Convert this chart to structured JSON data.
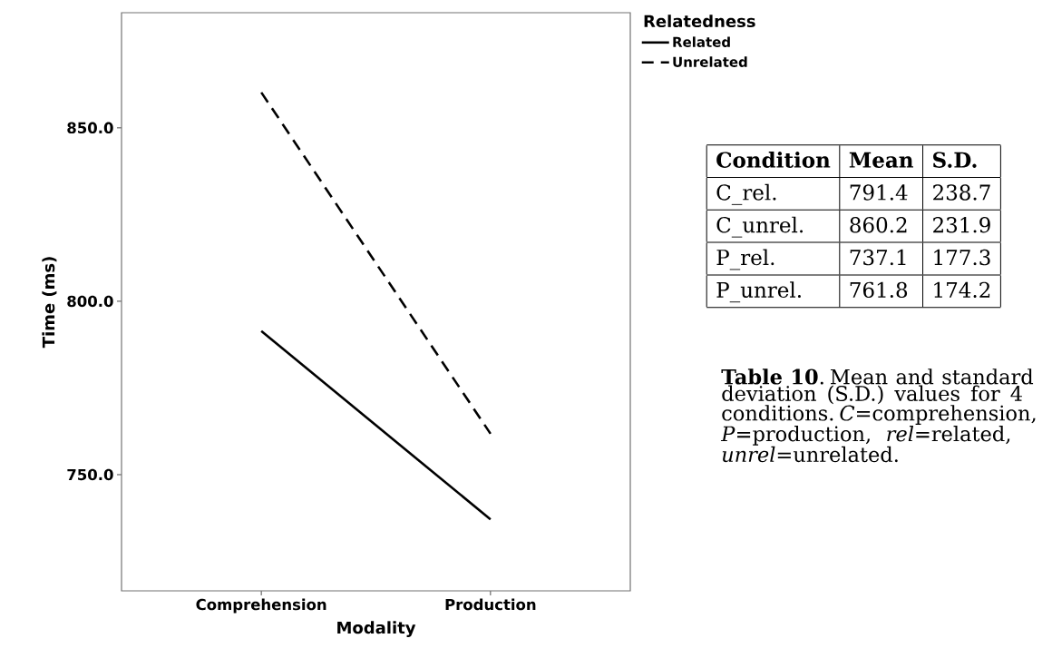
{
  "chart_data": [
    {
      "type": "line",
      "xlabel": "Modality",
      "ylabel": "Time (ms)",
      "legend_title": "Relatedness",
      "legend": "top right",
      "categories": [
        "Comprehension",
        "Production"
      ],
      "series": [
        {
          "name": "Related",
          "color": "#000000",
          "line_style": "solid",
          "values": [
            791.4,
            737.1
          ]
        },
        {
          "name": "Unrelated",
          "color": "#000000",
          "line_style": "dashed",
          "values": [
            860.2,
            761.8
          ]
        }
      ],
      "ylim": [
        716.5,
        883.2
      ],
      "yticks": [
        {
          "value": 750,
          "label": "750.0"
        },
        {
          "value": 800,
          "label": "800.0"
        },
        {
          "value": 850,
          "label": "850.0"
        }
      ]
    },
    {
      "type": "other",
      "annotations": [
        "Condition",
        "Mean",
        "S.D.",
        "C_rel.",
        "791.4",
        "238.7",
        "C_unrel.",
        "860.2",
        "231.9",
        "P_rel.",
        "737.1",
        "177.3",
        "P_unrel.",
        "761.8",
        "174.2",
        "**Table 10**. Mean and standard deviation (S.D.) values for 4 conditions. *C*=comprehension, *P*=production, *rel*=related, *unrel*=unrelated."
      ]
    }
  ]
}
